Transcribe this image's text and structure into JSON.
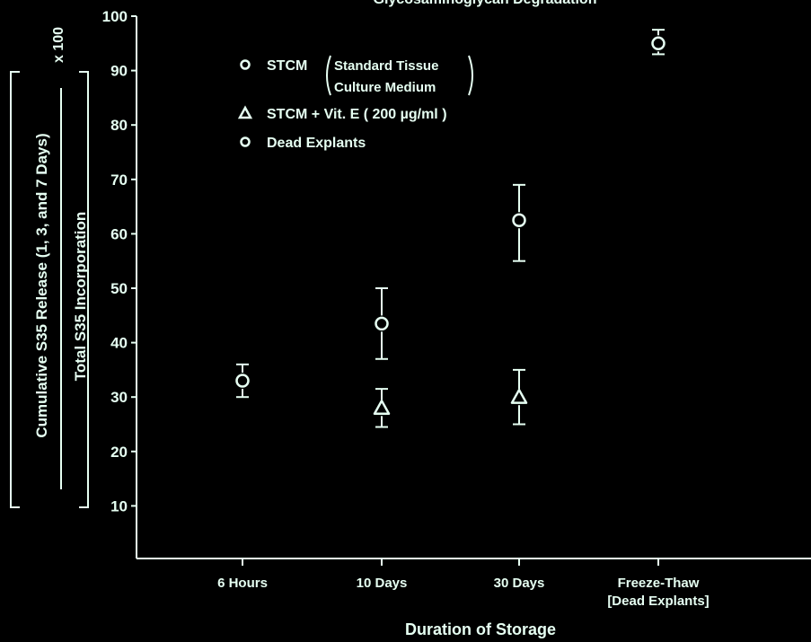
{
  "chart_data": {
    "type": "scatter",
    "title": "Glycosaminoglycan Degradation",
    "xlabel": "Duration of Storage",
    "ylabel": {
      "numerator": "Cumulative S35 Release (1, 3, and 7 Days)",
      "denominator": "Total S35 Incorporation",
      "multiplier": "x 100"
    },
    "ylim": [
      0,
      100
    ],
    "yticks": [
      10,
      20,
      30,
      40,
      50,
      60,
      70,
      80,
      90,
      100
    ],
    "categories": [
      "6 Hours",
      "10 Days",
      "30 Days",
      "Freeze-Thaw [Dead Explants]"
    ],
    "grid": false,
    "legend_position": "top-left",
    "legend": [
      {
        "marker": "circle",
        "label": "STCM",
        "note_line1": "Standard Tissue",
        "note_line2": "Culture Medium"
      },
      {
        "marker": "triangle",
        "label": "STCM + Vit. E ( 200 µg/ml )"
      },
      {
        "marker": "circle",
        "label": "Dead Explants"
      }
    ],
    "series": [
      {
        "name": "STCM (Standard Tissue Culture Medium)",
        "marker": "circle",
        "points": [
          {
            "category": "6 Hours",
            "y": 33,
            "err_low": 30,
            "err_high": 36
          },
          {
            "category": "10 Days",
            "y": 43.5,
            "err_low": 37,
            "err_high": 50
          },
          {
            "category": "30 Days",
            "y": 62.5,
            "err_low": 55,
            "err_high": 69
          }
        ]
      },
      {
        "name": "STCM + Vit. E (200 µg/ml)",
        "marker": "triangle",
        "points": [
          {
            "category": "10 Days",
            "y": 28,
            "err_low": 24.5,
            "err_high": 31.5
          },
          {
            "category": "30 Days",
            "y": 30,
            "err_low": 25,
            "err_high": 35
          }
        ]
      },
      {
        "name": "Dead Explants",
        "marker": "circle",
        "points": [
          {
            "category": "Freeze-Thaw [Dead Explants]",
            "y": 95,
            "err_low": 93,
            "err_high": 97.5
          }
        ]
      }
    ]
  }
}
